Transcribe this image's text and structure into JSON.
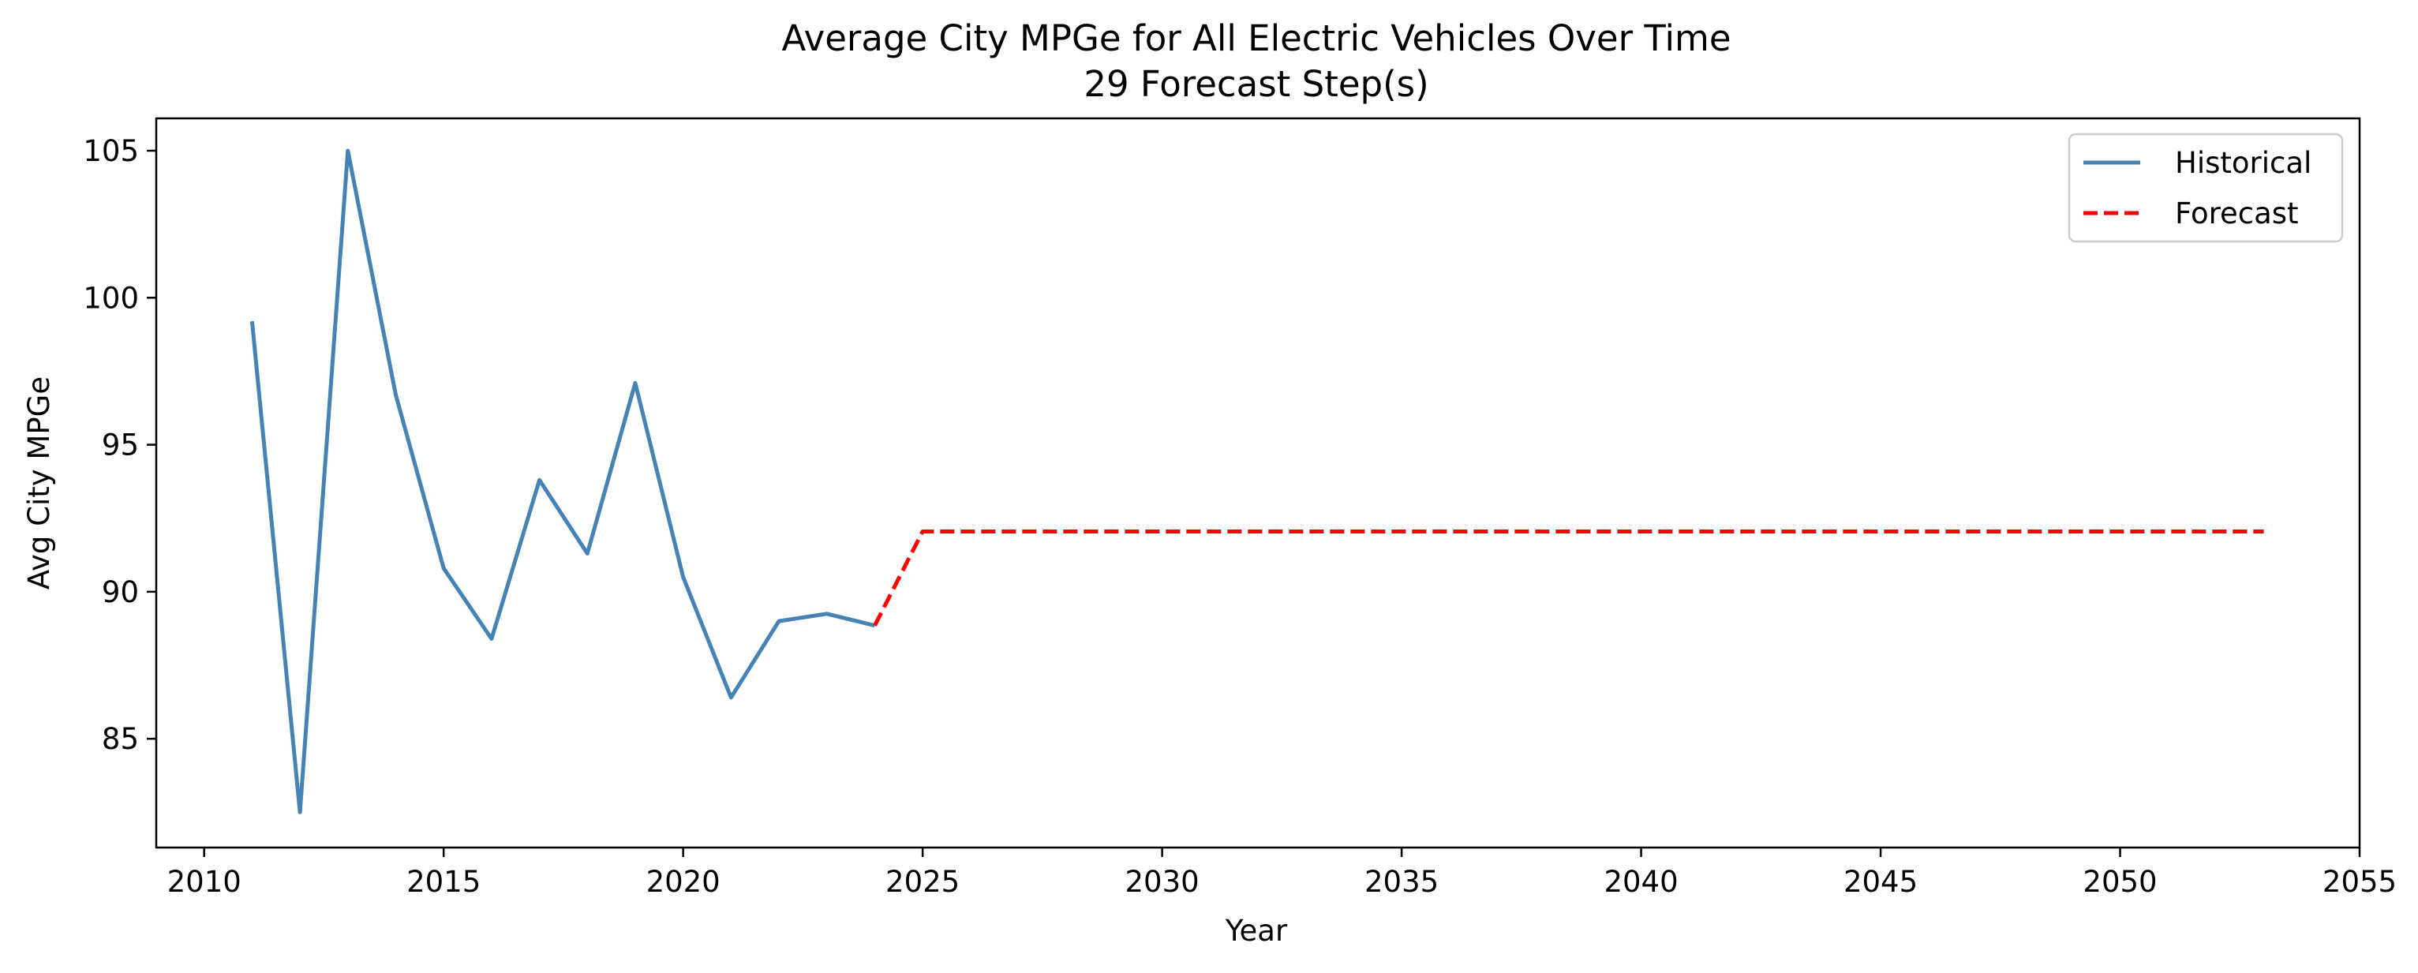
{
  "chart_data": {
    "type": "line",
    "title": "Average City MPGe for All Electric Vehicles Over Time",
    "subtitle": "29 Forecast Step(s)",
    "xlabel": "Year",
    "ylabel": "Avg City MPGe",
    "xlim": [
      2009,
      2055
    ],
    "ylim": [
      81.3,
      106.1
    ],
    "xticks": [
      2010,
      2015,
      2020,
      2025,
      2030,
      2035,
      2040,
      2045,
      2050,
      2055
    ],
    "yticks": [
      85,
      90,
      95,
      100,
      105
    ],
    "grid": false,
    "legend_position": "top-right",
    "series": [
      {
        "name": "Historical",
        "style": "solid",
        "color": "#4682b4",
        "x": [
          2011,
          2012,
          2013,
          2014,
          2015,
          2016,
          2017,
          2018,
          2019,
          2020,
          2021,
          2022,
          2023,
          2024
        ],
        "y": [
          99.2,
          82.5,
          105.0,
          96.7,
          90.8,
          88.4,
          93.8,
          91.3,
          97.1,
          90.5,
          86.4,
          89.0,
          89.25,
          88.85
        ]
      },
      {
        "name": "Forecast",
        "style": "dashed",
        "color": "#ff0000",
        "x": [
          2024,
          2025,
          2053
        ],
        "y": [
          88.85,
          92.05,
          92.05
        ]
      }
    ]
  }
}
